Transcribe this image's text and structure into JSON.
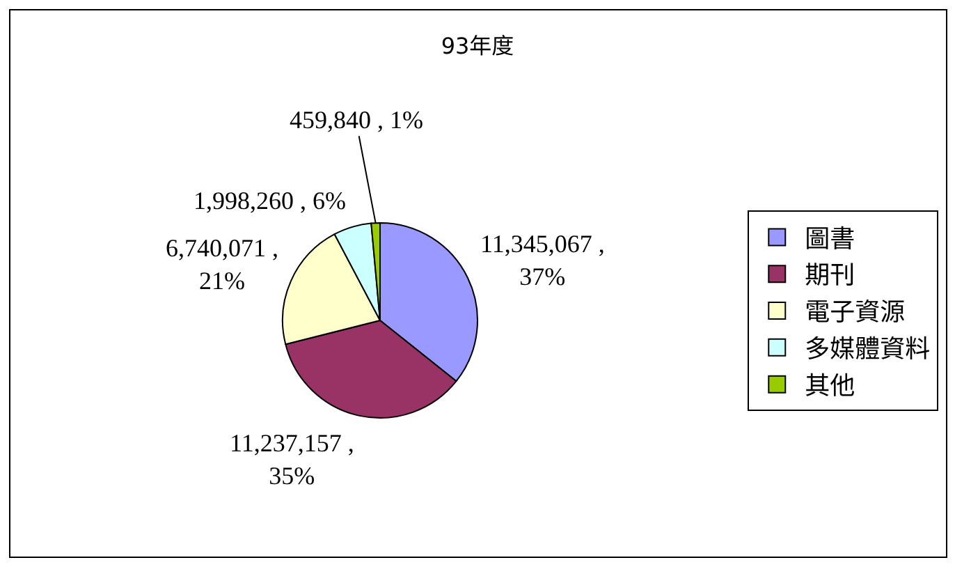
{
  "chart_data": {
    "type": "pie",
    "title": "93年度",
    "categories": [
      "圖書",
      "期刊",
      "電子資源",
      "多媒體資料",
      "其他"
    ],
    "values": [
      11345067,
      11237157,
      6740071,
      1998260,
      459840
    ],
    "colors": [
      "#9999ff",
      "#993366",
      "#ffffcc",
      "#ccffff",
      "#99cc00"
    ],
    "value_labels": [
      "11,345,067 , 37%",
      "11,237,157 , 35%",
      "6,740,071 , 21%",
      "1,998,260 , 6%",
      "459,840 , 1%"
    ],
    "legend": "right"
  }
}
